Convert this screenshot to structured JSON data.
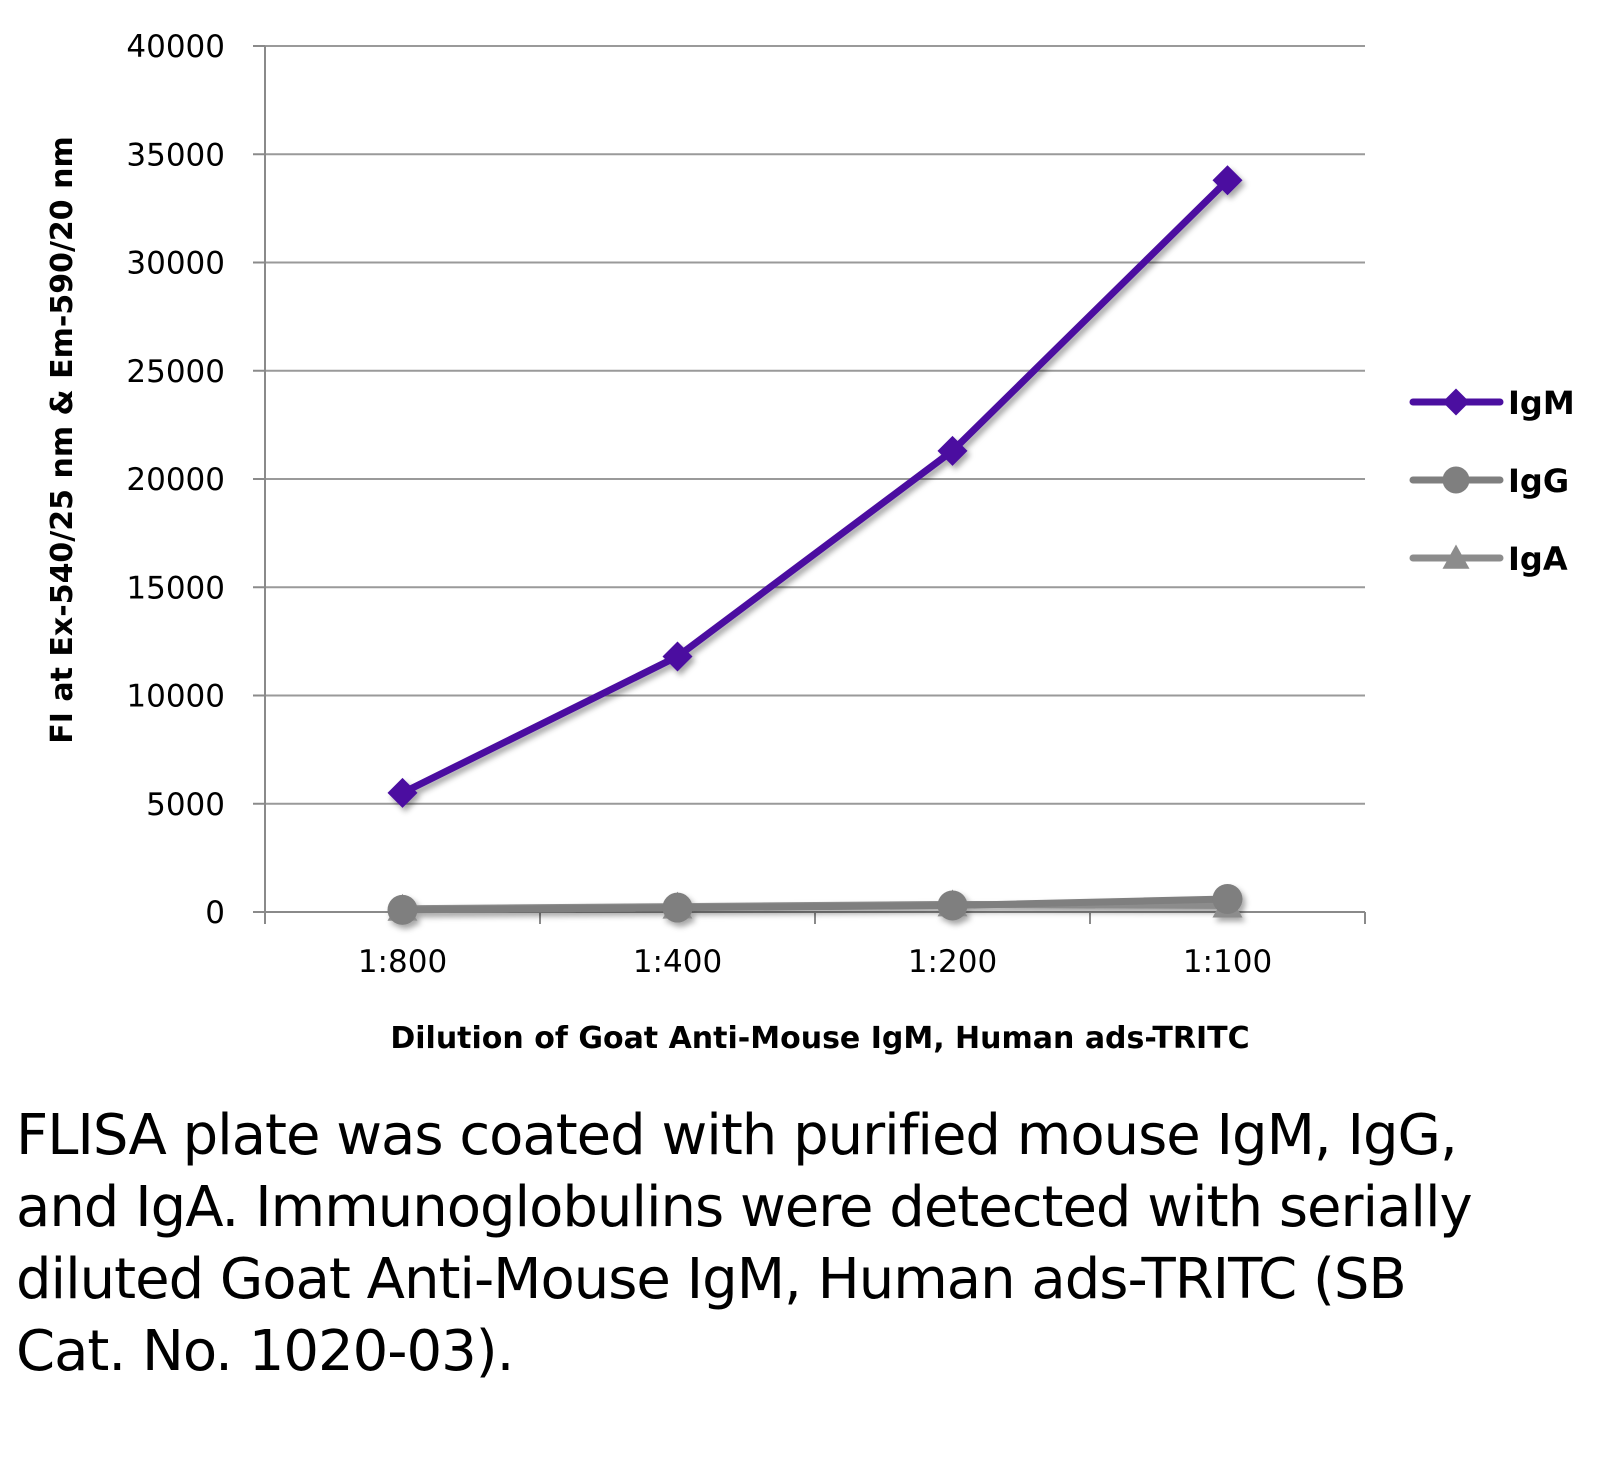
{
  "chart_data": {
    "type": "line",
    "xlabel": "Dilution of Goat Anti-Mouse IgM, Human ads-TRITC",
    "ylabel": "FI at Ex-540/25 nm & Em-590/20 nm",
    "categories": [
      "1:800",
      "1:400",
      "1:200",
      "1:100"
    ],
    "ylim": [
      0,
      40000
    ],
    "yticks": [
      0,
      5000,
      10000,
      15000,
      20000,
      25000,
      30000,
      35000,
      40000
    ],
    "grid": true,
    "legend": "right",
    "series": [
      {
        "name": "IgM",
        "values": [
          5500,
          11800,
          21300,
          33800
        ],
        "color": "#4b0fa0",
        "marker": "diamond"
      },
      {
        "name": "IgG",
        "values": [
          100,
          200,
          300,
          600
        ],
        "color": "#7f7f7f",
        "marker": "circle"
      },
      {
        "name": "IgA",
        "values": [
          150,
          250,
          350,
          300
        ],
        "color": "#8c8c8c",
        "marker": "triangle"
      }
    ]
  },
  "caption": "FLISA plate was coated with purified mouse IgM, IgG, and IgA.  Immunoglobulins were detected with serially diluted Goat Anti-Mouse IgM, Human ads-TRITC (SB Cat. No. 1020-03)."
}
